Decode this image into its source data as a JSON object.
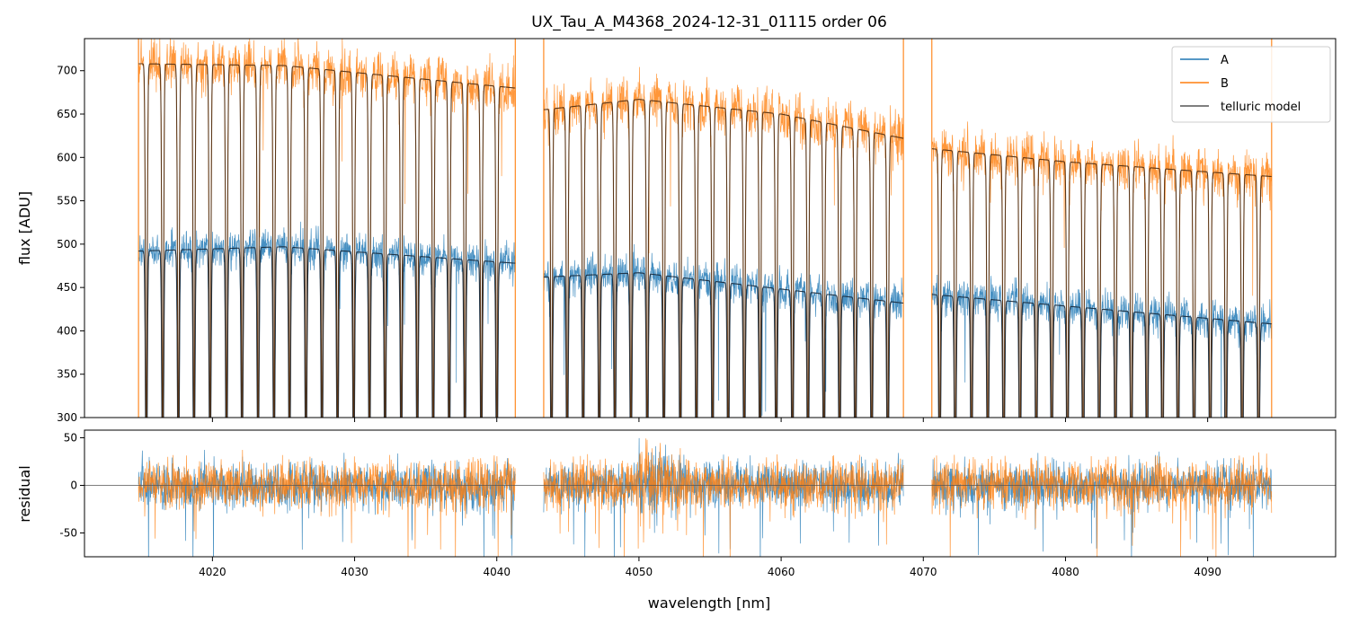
{
  "chart_data": {
    "type": "line",
    "title": "UX_Tau_A_M4368_2024-12-31_01115  order 06",
    "xlabel": "wavelength [nm]",
    "xlim": [
      4011,
      4099
    ],
    "xticks": [
      4020,
      4030,
      4040,
      4050,
      4060,
      4070,
      4080,
      4090
    ],
    "segments": [
      [
        4014.8,
        4041.3
      ],
      [
        4043.3,
        4068.6
      ],
      [
        4070.6,
        4094.5
      ]
    ],
    "panels": [
      {
        "name": "flux",
        "ylabel": "flux [ADU]",
        "ylim": [
          300,
          737
        ],
        "yticks": [
          300,
          350,
          400,
          450,
          500,
          550,
          600,
          650,
          700
        ],
        "legend": "top-right",
        "series": [
          {
            "name": "A",
            "color": "#1f77b4",
            "continuum": [
              [
                4014.8,
                492
              ],
              [
                4025,
                497
              ],
              [
                4041.3,
                478
              ],
              [
                4043.3,
                462
              ],
              [
                4050,
                467
              ],
              [
                4068.6,
                432
              ],
              [
                4070.6,
                442
              ],
              [
                4094.5,
                408
              ]
            ],
            "noise": 24
          },
          {
            "name": "B",
            "color": "#ff7f0e",
            "continuum": [
              [
                4014.8,
                708
              ],
              [
                4025,
                706
              ],
              [
                4041.3,
                680
              ],
              [
                4043.3,
                655
              ],
              [
                4050,
                667
              ],
              [
                4060,
                650
              ],
              [
                4068.6,
                622
              ],
              [
                4070.6,
                610
              ],
              [
                4080,
                595
              ],
              [
                4094.5,
                578
              ]
            ],
            "noise": 32
          },
          {
            "name": "telluric model",
            "color": "#555555"
          }
        ]
      },
      {
        "name": "residual",
        "ylabel": "residual",
        "ylim": [
          -75,
          58
        ],
        "yticks": [
          -50,
          0,
          50
        ],
        "series": [
          {
            "name": "A",
            "color": "#1f77b4",
            "noise": 22
          },
          {
            "name": "B",
            "color": "#ff7f0e",
            "noise": 24
          }
        ]
      }
    ]
  }
}
